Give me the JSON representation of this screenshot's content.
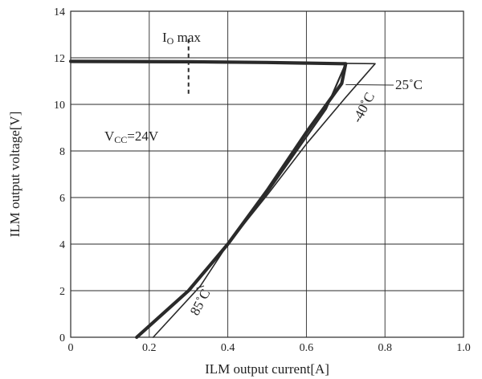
{
  "chart_data": {
    "type": "line",
    "xlabel": "ILM output current[A]",
    "ylabel": "ILM output voltage[V]",
    "xlim": [
      0,
      1.0
    ],
    "ylim": [
      0,
      14
    ],
    "xticks": [
      "0",
      "0.2",
      "0.4",
      "0.6",
      "0.8",
      "1.0"
    ],
    "yticks": [
      "0",
      "2",
      "4",
      "6",
      "8",
      "10",
      "12",
      "14"
    ],
    "grid": true,
    "series": [
      {
        "name": "25°C",
        "x": [
          0,
          0.3,
          0.5,
          0.69,
          0.7,
          0.69,
          0.6,
          0.5,
          0.4,
          0.3,
          0.168
        ],
        "y": [
          11.85,
          11.83,
          11.8,
          11.75,
          11.75,
          10.9,
          8.8,
          6.3,
          4.0,
          2.0,
          0
        ]
      },
      {
        "name": "-40°C",
        "x": [
          0,
          0.3,
          0.6,
          0.7,
          0.65,
          0.6,
          0.5,
          0.4,
          0.3,
          0.168
        ],
        "y": [
          11.83,
          11.8,
          11.77,
          11.75,
          9.8,
          8.6,
          6.2,
          3.95,
          2.0,
          0
        ]
      },
      {
        "name": "85°C",
        "x": [
          0,
          0.3,
          0.6,
          0.775,
          0.7,
          0.6,
          0.5,
          0.4,
          0.33,
          0.21
        ],
        "y": [
          11.8,
          11.8,
          11.78,
          11.75,
          10.3,
          8.3,
          6.1,
          4.0,
          2.2,
          0
        ]
      }
    ],
    "annotations": {
      "io_max": {
        "main": "I",
        "sub": "O",
        "rest": " max",
        "x": 0.3
      },
      "vcc": {
        "main": "V",
        "sub": "CC",
        "rest": "=24V"
      },
      "label_25": "25˚C",
      "label_m40": "-40˚C",
      "label_85": "85˚C"
    },
    "colors": {
      "line": "#2a2a2a",
      "grid": "#2a2a2a"
    }
  }
}
